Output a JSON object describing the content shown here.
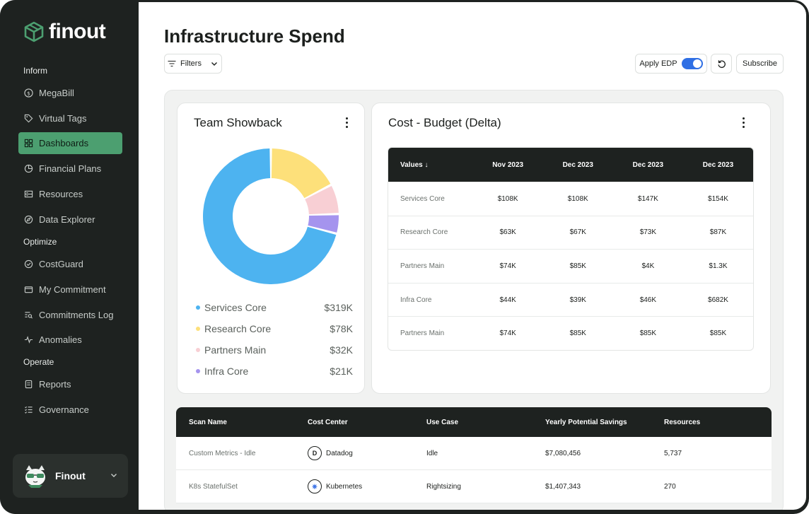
{
  "brand": {
    "name": "finout"
  },
  "sidebar": {
    "sections": {
      "inform": "Inform",
      "optimize": "Optimize",
      "operate": "Operate"
    },
    "items": [
      {
        "label": "MegaBill",
        "icon": "dollar-circle-icon"
      },
      {
        "label": "Virtual Tags",
        "icon": "tag-icon"
      },
      {
        "label": "Dashboards",
        "icon": "grid-icon",
        "active": true
      },
      {
        "label": "Financial Plans",
        "icon": "pie-icon"
      },
      {
        "label": "Resources",
        "icon": "server-icon"
      },
      {
        "label": "Data Explorer",
        "icon": "compass-icon"
      },
      {
        "label": "CostGuard",
        "icon": "shield-check-icon"
      },
      {
        "label": "My Commitment",
        "icon": "wallet-icon"
      },
      {
        "label": "Commitments Log",
        "icon": "log-search-icon"
      },
      {
        "label": "Anomalies",
        "icon": "pulse-icon"
      },
      {
        "label": "Reports",
        "icon": "document-icon"
      },
      {
        "label": "Governance",
        "icon": "list-check-icon"
      }
    ],
    "user": {
      "name": "Finout"
    }
  },
  "header": {
    "title": "Infrastructure Spend",
    "filters_label": "Filters",
    "apply_edp_label": "Apply EDP",
    "subscribe_label": "Subscribe"
  },
  "team_showback": {
    "title": "Team Showback",
    "legend": [
      {
        "name": "Services Core",
        "value": "$319K",
        "color": "#4db3f0"
      },
      {
        "name": "Research Core",
        "value": "$78K",
        "color": "#fde07a"
      },
      {
        "name": "Partners Main",
        "value": "$32K",
        "color": "#f8cfd4"
      },
      {
        "name": "Infra Core",
        "value": "$21K",
        "color": "#a594ee"
      }
    ]
  },
  "cost_budget": {
    "title": "Cost - Budget (Delta)",
    "headers": [
      "Values",
      "Nov 2023",
      "Dec 2023",
      "Dec 2023",
      "Dec 2023"
    ],
    "rows": [
      [
        "Services Core",
        "$108K",
        "$108K",
        "$147K",
        "$154K"
      ],
      [
        "Research Core",
        "$63K",
        "$67K",
        "$73K",
        "$87K"
      ],
      [
        "Partners Main",
        "$74K",
        "$85K",
        "$4K",
        "$1.3K"
      ],
      [
        "Infra Core",
        "$44K",
        "$39K",
        "$46K",
        "$682K"
      ],
      [
        "Partners Main",
        "$74K",
        "$85K",
        "$85K",
        "$85K"
      ]
    ]
  },
  "scan_table": {
    "headers": [
      "Scan Name",
      "Cost Center",
      "Use Case",
      "Yearly Potential Savings",
      "Resources"
    ],
    "rows": [
      [
        "Custom Metrics - Idle",
        "Datadog",
        "Idle",
        "$7,080,456",
        "5,737"
      ],
      [
        "K8s StatefulSet",
        "Kubernetes",
        "Rightsizing",
        "$1,407,343",
        "270"
      ]
    ]
  }
}
